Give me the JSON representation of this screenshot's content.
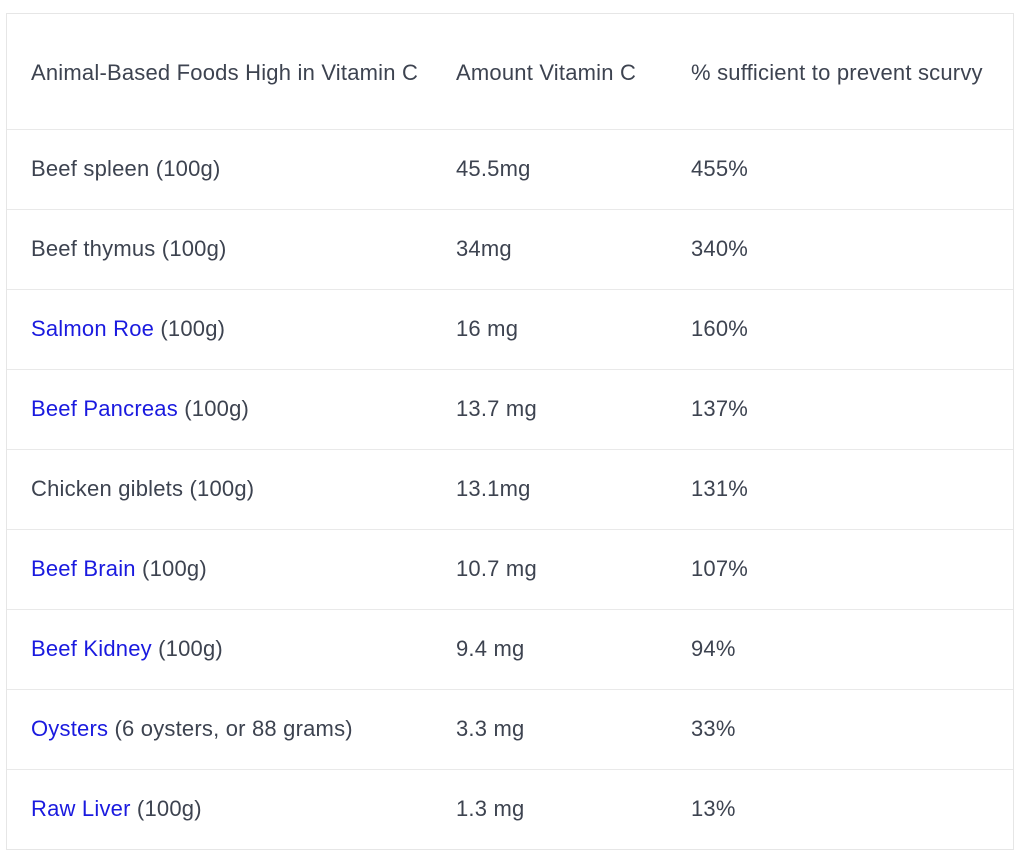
{
  "table": {
    "headers": [
      "Animal-Based Foods High in Vitamin C",
      "Amount Vitamin C",
      "% sufficient to prevent scurvy"
    ],
    "rows": [
      {
        "food_link": "",
        "food_rest": "Beef spleen (100g)",
        "amount": "45.5mg",
        "percent": "455%"
      },
      {
        "food_link": "",
        "food_rest": "Beef thymus (100g)",
        "amount": "34mg",
        "percent": "340%"
      },
      {
        "food_link": "Salmon Roe",
        "food_rest": " (100g)",
        "amount": "16 mg",
        "percent": "160%"
      },
      {
        "food_link": "Beef Pancreas",
        "food_rest": " (100g)",
        "amount": "13.7 mg",
        "percent": "137%"
      },
      {
        "food_link": "",
        "food_rest": "Chicken giblets (100g)",
        "amount": "13.1mg",
        "percent": "131%"
      },
      {
        "food_link": "Beef Brain",
        "food_rest": " (100g)",
        "amount": "10.7 mg",
        "percent": "107%"
      },
      {
        "food_link": "Beef Kidney",
        "food_rest": " (100g)",
        "amount": "9.4 mg",
        "percent": "94%"
      },
      {
        "food_link": "Oysters",
        "food_rest": " (6 oysters, or 88 grams)",
        "amount": "3.3 mg",
        "percent": "33%"
      },
      {
        "food_link": "Raw Liver",
        "food_rest": " (100g)",
        "amount": "1.3 mg",
        "percent": "13%"
      }
    ]
  },
  "colors": {
    "text": "#3d4350",
    "link": "#1a1adf",
    "border": "#e9e9e9"
  }
}
